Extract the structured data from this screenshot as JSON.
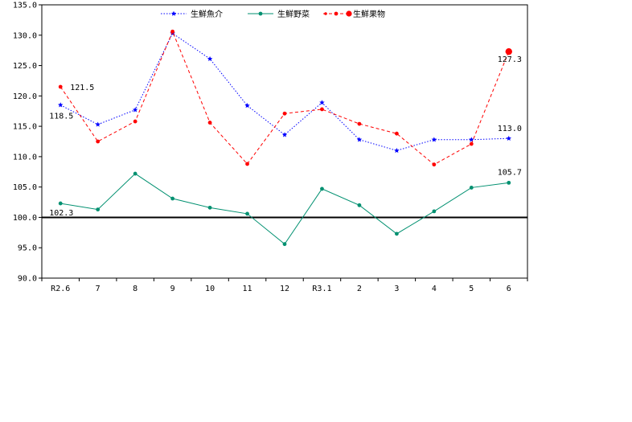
{
  "chart_data": {
    "type": "line",
    "title": "",
    "xlabel": "",
    "ylabel": "",
    "categories": [
      "R2.6",
      "7",
      "8",
      "9",
      "10",
      "11",
      "12",
      "R3.1",
      "2",
      "3",
      "4",
      "5",
      "6"
    ],
    "ylim": [
      90,
      135
    ],
    "yticks": [
      "90.0",
      "95.0",
      "100.0",
      "105.0",
      "110.0",
      "115.0",
      "120.0",
      "125.0",
      "130.0",
      "135.0"
    ],
    "reference_line": 100,
    "grid": false,
    "legend_position": "top",
    "series": [
      {
        "name": "生鮮魚介",
        "color": "#0000ff",
        "line_style": "dotted",
        "marker": "star",
        "values": [
          118.5,
          115.3,
          117.7,
          130.3,
          126.1,
          118.4,
          113.6,
          118.9,
          112.8,
          111.0,
          112.8,
          112.8,
          113.0
        ]
      },
      {
        "name": "生鮮野菜",
        "color": "#009070",
        "line_style": "solid",
        "marker": "circle",
        "values": [
          102.3,
          101.3,
          107.2,
          103.1,
          101.6,
          100.6,
          95.6,
          104.7,
          102.0,
          97.3,
          101.0,
          104.9,
          105.7
        ]
      },
      {
        "name": "生鮮果物",
        "color": "#ff0000",
        "line_style": "dashed",
        "marker": "circle",
        "values": [
          121.5,
          112.5,
          115.8,
          130.6,
          115.6,
          108.8,
          117.1,
          117.8,
          115.4,
          113.8,
          108.7,
          112.1,
          127.3
        ]
      }
    ],
    "data_labels": [
      {
        "series": 0,
        "index": 0,
        "text": "118.5"
      },
      {
        "series": 2,
        "index": 0,
        "text": "121.5"
      },
      {
        "series": 1,
        "index": 0,
        "text": "102.3"
      },
      {
        "series": 2,
        "index": 12,
        "text": "127.3"
      },
      {
        "series": 0,
        "index": 12,
        "text": "113.0"
      },
      {
        "series": 1,
        "index": 12,
        "text": "105.7"
      }
    ]
  }
}
